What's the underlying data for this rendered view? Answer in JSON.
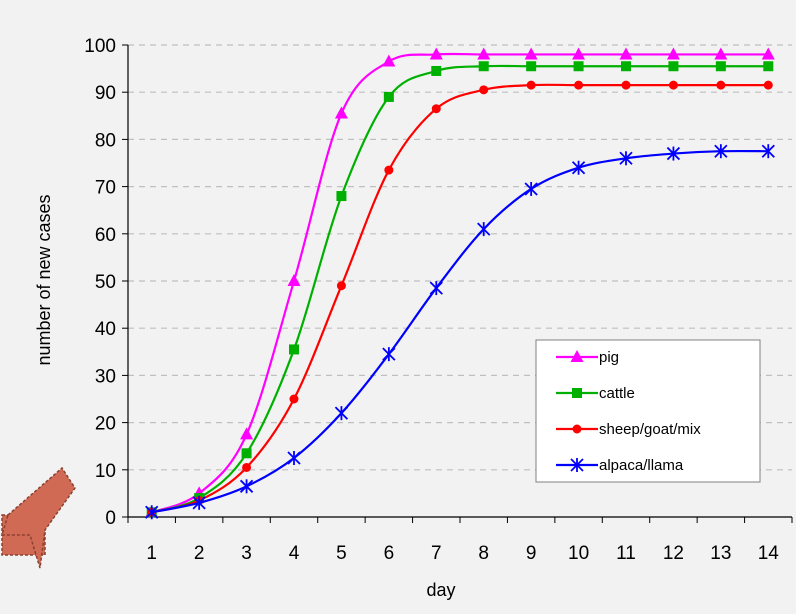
{
  "chart_data": {
    "type": "line",
    "title": "",
    "xlabel": "day",
    "ylabel": "number of new cases",
    "xlim": [
      1,
      14
    ],
    "ylim": [
      0,
      100
    ],
    "categories": [
      "1",
      "2",
      "3",
      "4",
      "5",
      "6",
      "7",
      "8",
      "9",
      "10",
      "11",
      "12",
      "13",
      "14"
    ],
    "grid": "horizontal dashed",
    "legend_position": "bottom-right",
    "series": [
      {
        "name": "pig",
        "color": "#ff00ff",
        "marker": "triangle",
        "values": [
          1,
          5,
          17.5,
          50,
          85.5,
          96.5,
          98,
          98,
          98,
          98,
          98,
          98,
          98,
          98
        ]
      },
      {
        "name": "cattle",
        "color": "#00b000",
        "marker": "square",
        "values": [
          1,
          4,
          13.5,
          35.5,
          68,
          89,
          94.5,
          95.5,
          95.5,
          95.5,
          95.5,
          95.5,
          95.5,
          95.5
        ]
      },
      {
        "name": "sheep/goat/mix",
        "color": "#ff0000",
        "marker": "circle",
        "values": [
          1,
          3.5,
          10.5,
          25,
          49,
          73.5,
          86.5,
          90.5,
          91.5,
          91.5,
          91.5,
          91.5,
          91.5,
          91.5
        ]
      },
      {
        "name": "alpaca/llama",
        "color": "#0000ff",
        "marker": "asterisk",
        "values": [
          1,
          3,
          6.5,
          12.5,
          22,
          34.5,
          48.5,
          61,
          69.5,
          74,
          76,
          77,
          77.5,
          77.5
        ]
      }
    ]
  },
  "decoration": {
    "arrow_icon": "arrow-pointer-icon",
    "arrow_color": "#d06a55"
  }
}
